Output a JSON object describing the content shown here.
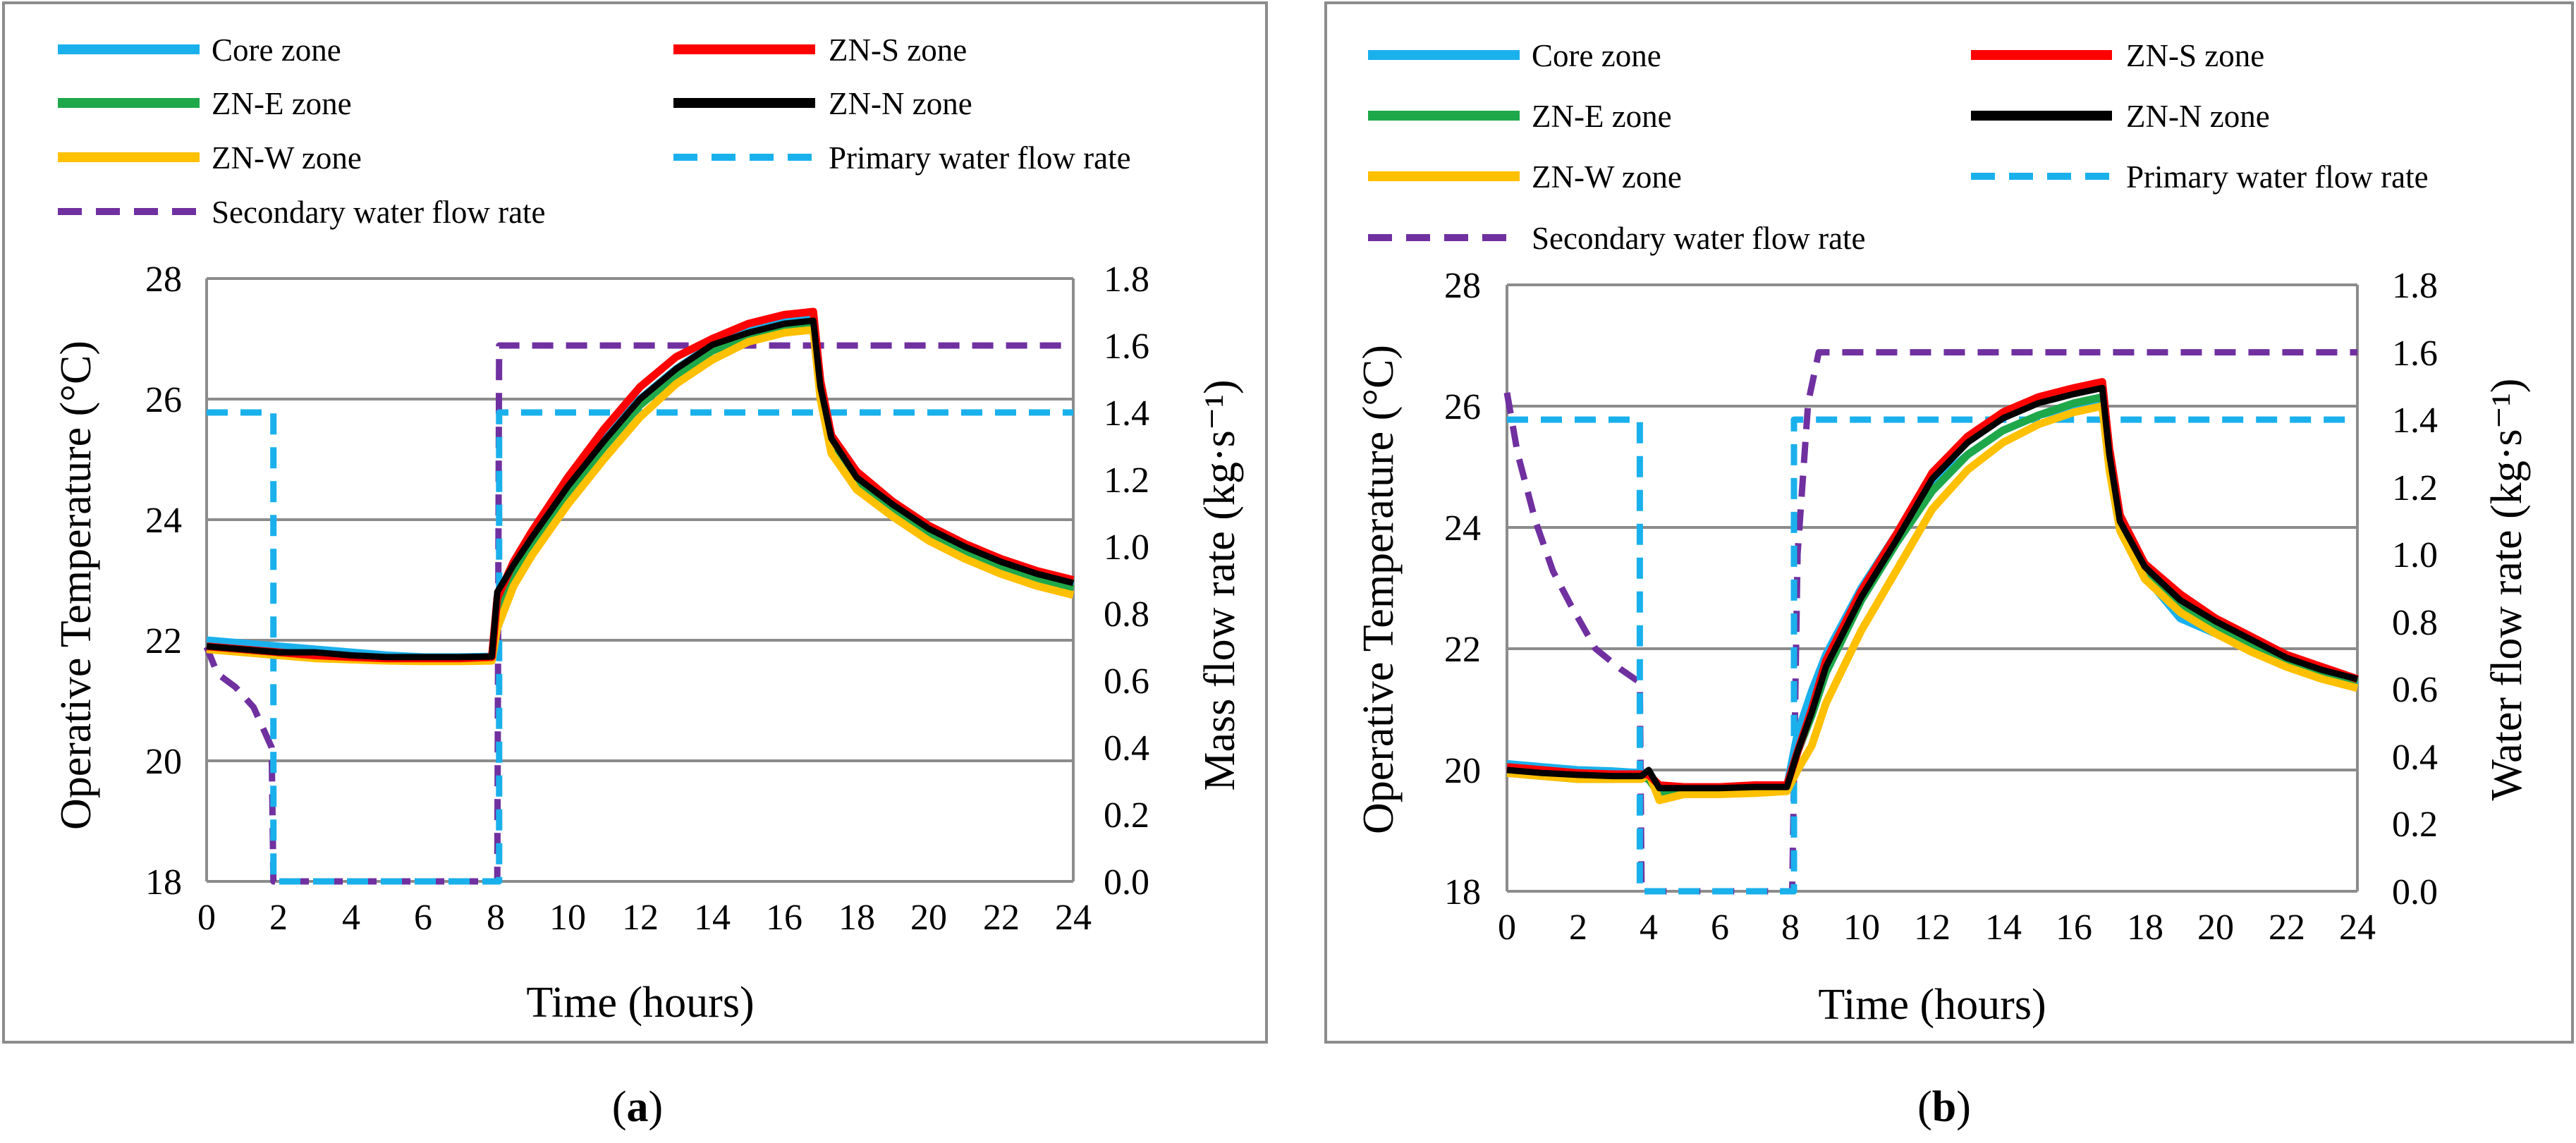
{
  "colors": {
    "core": "#1ab0ec",
    "zns": "#ff0000",
    "zne": "#1fa84a",
    "znn": "#000000",
    "znw": "#ffc000",
    "primary": "#1ab0ec",
    "secondary": "#7030a0"
  },
  "chart_data": [
    {
      "type": "line",
      "caption_open": "(",
      "caption_letter": "a",
      "caption_close": ")",
      "xlabel": "Time (hours)",
      "ylabel": "Operative Temperature (°C)",
      "y2label": "Mass flow rate (kg·s⁻¹)",
      "xlim": [
        0,
        24
      ],
      "ylim": [
        18,
        28
      ],
      "y2lim": [
        0,
        1.8
      ],
      "x_ticks": [
        "0",
        "2",
        "4",
        "6",
        "8",
        "10",
        "12",
        "14",
        "16",
        "18",
        "20",
        "22",
        "24"
      ],
      "y_ticks": [
        "18",
        "20",
        "22",
        "24",
        "26",
        "28"
      ],
      "y2_ticks": [
        "0.0",
        "0.2",
        "0.4",
        "0.6",
        "0.8",
        "1.0",
        "1.2",
        "1.4",
        "1.6",
        "1.8"
      ],
      "legend": [
        {
          "key": "core",
          "label": "Core zone",
          "dash": false
        },
        {
          "key": "zns",
          "label": "ZN-S zone",
          "dash": false
        },
        {
          "key": "zne",
          "label": "ZN-E zone",
          "dash": false
        },
        {
          "key": "znn",
          "label": "ZN-N zone",
          "dash": false
        },
        {
          "key": "znw",
          "label": "ZN-W zone",
          "dash": false
        },
        {
          "key": "primary",
          "label": "Primary water flow rate",
          "dash": true
        },
        {
          "key": "secondary",
          "label": "Secondary water flow rate",
          "dash": true
        }
      ],
      "series": [
        {
          "key": "core",
          "name": "Core zone",
          "axis": "left",
          "x": [
            0,
            1,
            2,
            3,
            4,
            5,
            6,
            7,
            7.9,
            8.05,
            8.5,
            9,
            10,
            11,
            12,
            13,
            14,
            15,
            16,
            16.8,
            17,
            17.3,
            18,
            19,
            20,
            21,
            22,
            23,
            24
          ],
          "y": [
            22.0,
            21.95,
            21.9,
            21.85,
            21.8,
            21.75,
            21.72,
            21.72,
            21.73,
            22.6,
            23.2,
            23.6,
            24.5,
            25.3,
            26.0,
            26.5,
            26.9,
            27.15,
            27.3,
            27.35,
            26.2,
            25.3,
            24.7,
            24.2,
            23.8,
            23.5,
            23.25,
            23.05,
            22.9
          ]
        },
        {
          "key": "zns",
          "name": "ZN-S zone",
          "axis": "left",
          "x": [
            0,
            1,
            2,
            3,
            4,
            5,
            6,
            7,
            7.9,
            8.05,
            8.5,
            9,
            10,
            11,
            12,
            13,
            14,
            15,
            16,
            16.8,
            17,
            17.3,
            18,
            19,
            20,
            21,
            22,
            23,
            24
          ],
          "y": [
            21.9,
            21.85,
            21.8,
            21.75,
            21.72,
            21.7,
            21.7,
            21.7,
            21.72,
            22.7,
            23.3,
            23.8,
            24.7,
            25.5,
            26.2,
            26.7,
            27.0,
            27.25,
            27.4,
            27.45,
            26.3,
            25.4,
            24.8,
            24.3,
            23.9,
            23.6,
            23.35,
            23.15,
            23.0
          ]
        },
        {
          "key": "zne",
          "name": "ZN-E zone",
          "axis": "left",
          "x": [
            0,
            1,
            2,
            3,
            4,
            5,
            6,
            7,
            7.9,
            8.05,
            8.5,
            9,
            10,
            11,
            12,
            13,
            14,
            15,
            16,
            16.8,
            17,
            17.3,
            18,
            19,
            20,
            21,
            22,
            23,
            24
          ],
          "y": [
            21.88,
            21.82,
            21.78,
            21.72,
            21.7,
            21.68,
            21.66,
            21.66,
            21.68,
            22.5,
            23.1,
            23.55,
            24.45,
            25.2,
            25.9,
            26.4,
            26.8,
            27.05,
            27.2,
            27.25,
            26.1,
            25.25,
            24.65,
            24.15,
            23.75,
            23.45,
            23.2,
            23.0,
            22.85
          ]
        },
        {
          "key": "znn",
          "name": "ZN-N zone",
          "axis": "left",
          "x": [
            0,
            1,
            2,
            3,
            4,
            5,
            6,
            7,
            7.9,
            8.05,
            8.5,
            9,
            10,
            11,
            12,
            13,
            14,
            15,
            16,
            16.8,
            17,
            17.3,
            18,
            19,
            20,
            21,
            22,
            23,
            24
          ],
          "y": [
            21.9,
            21.85,
            21.8,
            21.8,
            21.75,
            21.72,
            21.72,
            21.72,
            21.73,
            22.8,
            23.25,
            23.7,
            24.55,
            25.3,
            26.0,
            26.5,
            26.9,
            27.1,
            27.25,
            27.3,
            26.2,
            25.35,
            24.7,
            24.25,
            23.85,
            23.55,
            23.3,
            23.1,
            22.95
          ]
        },
        {
          "key": "znw",
          "name": "ZN-W zone",
          "axis": "left",
          "x": [
            0,
            1,
            2,
            3,
            4,
            5,
            6,
            7,
            7.9,
            8.05,
            8.5,
            9,
            10,
            11,
            12,
            13,
            14,
            15,
            16,
            16.8,
            17,
            17.3,
            18,
            19,
            20,
            21,
            22,
            23,
            24
          ],
          "y": [
            21.85,
            21.8,
            21.75,
            21.7,
            21.68,
            21.66,
            21.65,
            21.65,
            21.66,
            22.2,
            22.9,
            23.4,
            24.25,
            25.0,
            25.7,
            26.25,
            26.65,
            26.95,
            27.1,
            27.15,
            26.0,
            25.1,
            24.5,
            24.05,
            23.65,
            23.35,
            23.1,
            22.9,
            22.75
          ]
        },
        {
          "key": "primary",
          "name": "Primary water flow rate",
          "axis": "right",
          "x": [
            0,
            1.85,
            1.85,
            8.1,
            8.1,
            24
          ],
          "y": [
            1.4,
            1.4,
            0.0,
            0.0,
            1.4,
            1.4
          ]
        },
        {
          "key": "secondary",
          "name": "Secondary water flow rate",
          "axis": "right",
          "x": [
            0,
            0.3,
            0.8,
            1.3,
            1.8,
            1.85,
            8.05,
            8.1,
            24
          ],
          "y": [
            0.7,
            0.62,
            0.58,
            0.52,
            0.4,
            0.0,
            0.0,
            1.6,
            1.6
          ]
        }
      ]
    },
    {
      "type": "line",
      "caption_open": "(",
      "caption_letter": "b",
      "caption_close": ")",
      "xlabel": "Time (hours)",
      "ylabel": "Operative Temperature (°C)",
      "y2label": "Water flow rate (kg·s⁻¹)",
      "xlim": [
        0,
        24
      ],
      "ylim": [
        18,
        28
      ],
      "y2lim": [
        0,
        1.8
      ],
      "x_ticks": [
        "0",
        "2",
        "4",
        "6",
        "8",
        "10",
        "12",
        "14",
        "16",
        "18",
        "20",
        "22",
        "24"
      ],
      "y_ticks": [
        "18",
        "20",
        "22",
        "24",
        "26",
        "28"
      ],
      "y2_ticks": [
        "0.0",
        "0.2",
        "0.4",
        "0.6",
        "0.8",
        "1.0",
        "1.2",
        "1.4",
        "1.6",
        "1.8"
      ],
      "legend": [
        {
          "key": "core",
          "label": "Core zone",
          "dash": false
        },
        {
          "key": "zns",
          "label": "ZN-S zone",
          "dash": false
        },
        {
          "key": "zne",
          "label": "ZN-E zone",
          "dash": false
        },
        {
          "key": "znn",
          "label": "ZN-N zone",
          "dash": false
        },
        {
          "key": "znw",
          "label": "ZN-W zone",
          "dash": false
        },
        {
          "key": "primary",
          "label": "Primary water flow rate",
          "dash": true
        },
        {
          "key": "secondary",
          "label": "Secondary water flow rate",
          "dash": true
        }
      ],
      "series": [
        {
          "key": "core",
          "name": "Core zone",
          "axis": "left",
          "x": [
            0,
            1,
            2,
            3,
            3.8,
            4,
            4.3,
            5,
            6,
            7,
            7.9,
            8.2,
            8.6,
            9,
            10,
            11,
            12,
            13,
            14,
            15,
            16,
            16.8,
            17,
            17.3,
            18,
            19,
            20,
            21,
            22,
            23,
            24
          ],
          "y": [
            20.1,
            20.05,
            20.0,
            19.98,
            19.95,
            19.9,
            19.7,
            19.65,
            19.65,
            19.7,
            19.72,
            20.6,
            21.3,
            21.9,
            23.0,
            23.9,
            24.7,
            25.2,
            25.6,
            25.85,
            26.0,
            26.1,
            25.1,
            24.0,
            23.2,
            22.5,
            22.25,
            22.0,
            21.75,
            21.55,
            21.4
          ]
        },
        {
          "key": "zns",
          "name": "ZN-S zone",
          "axis": "left",
          "x": [
            0,
            1,
            2,
            3,
            3.8,
            4,
            4.3,
            5,
            6,
            7,
            7.9,
            8.2,
            8.6,
            9,
            10,
            11,
            12,
            13,
            14,
            15,
            16,
            16.8,
            17,
            17.3,
            18,
            19,
            20,
            21,
            22,
            23,
            24
          ],
          "y": [
            20.05,
            20.0,
            19.95,
            19.93,
            19.93,
            19.92,
            19.75,
            19.72,
            19.72,
            19.75,
            19.75,
            20.3,
            21.0,
            21.8,
            22.95,
            23.9,
            24.9,
            25.5,
            25.9,
            26.15,
            26.3,
            26.4,
            25.3,
            24.2,
            23.4,
            22.9,
            22.5,
            22.2,
            21.9,
            21.7,
            21.5
          ]
        },
        {
          "key": "zne",
          "name": "ZN-E zone",
          "axis": "left",
          "x": [
            0,
            1,
            2,
            3,
            3.8,
            4,
            4.3,
            5,
            6,
            7,
            7.9,
            8.2,
            8.6,
            9,
            10,
            11,
            12,
            13,
            14,
            15,
            16,
            16.8,
            17,
            17.3,
            18,
            19,
            20,
            21,
            22,
            23,
            24
          ],
          "y": [
            19.95,
            19.9,
            19.85,
            19.85,
            19.88,
            19.85,
            19.6,
            19.62,
            19.65,
            19.68,
            19.7,
            20.3,
            20.9,
            21.6,
            22.8,
            23.75,
            24.6,
            25.2,
            25.6,
            25.85,
            26.05,
            26.15,
            25.1,
            24.05,
            23.25,
            22.7,
            22.35,
            22.05,
            21.8,
            21.6,
            21.45
          ]
        },
        {
          "key": "znn",
          "name": "ZN-N zone",
          "axis": "left",
          "x": [
            0,
            1,
            2,
            3,
            3.8,
            4,
            4.3,
            5,
            6,
            7,
            7.9,
            8.2,
            8.6,
            9,
            10,
            11,
            12,
            13,
            14,
            15,
            16,
            16.8,
            17,
            17.3,
            18,
            19,
            20,
            21,
            22,
            23,
            24
          ],
          "y": [
            20.0,
            19.95,
            19.92,
            19.9,
            19.9,
            20.0,
            19.7,
            19.7,
            19.7,
            19.72,
            19.72,
            20.3,
            20.95,
            21.7,
            22.85,
            23.8,
            24.8,
            25.4,
            25.8,
            26.05,
            26.2,
            26.3,
            25.2,
            24.1,
            23.35,
            22.8,
            22.45,
            22.15,
            21.85,
            21.65,
            21.5
          ]
        },
        {
          "key": "znw",
          "name": "ZN-W zone",
          "axis": "left",
          "x": [
            0,
            1,
            2,
            3,
            3.8,
            4,
            4.3,
            5,
            6,
            7,
            7.9,
            8.2,
            8.6,
            9,
            10,
            11,
            12,
            13,
            14,
            15,
            16,
            16.8,
            17,
            17.3,
            18,
            19,
            20,
            21,
            22,
            23,
            24
          ],
          "y": [
            19.95,
            19.9,
            19.85,
            19.85,
            19.85,
            19.95,
            19.5,
            19.6,
            19.6,
            19.62,
            19.65,
            20.0,
            20.4,
            21.1,
            22.3,
            23.3,
            24.3,
            24.95,
            25.4,
            25.7,
            25.9,
            26.0,
            24.95,
            23.95,
            23.15,
            22.6,
            22.25,
            21.95,
            21.7,
            21.5,
            21.35
          ]
        },
        {
          "key": "primary",
          "name": "Primary water flow rate",
          "axis": "right",
          "x": [
            0,
            3.75,
            3.75,
            8.1,
            8.1,
            24
          ],
          "y": [
            1.4,
            1.4,
            0.0,
            0.0,
            1.4,
            1.4
          ]
        },
        {
          "key": "secondary",
          "name": "Secondary water flow rate",
          "axis": "right",
          "x": [
            0,
            0.3,
            0.8,
            1.3,
            1.8,
            2.5,
            3.2,
            3.75,
            3.8,
            8.05,
            8.2,
            8.5,
            8.8,
            24
          ],
          "y": [
            1.48,
            1.3,
            1.1,
            0.95,
            0.85,
            0.72,
            0.66,
            0.62,
            0.0,
            0.0,
            1.0,
            1.45,
            1.6,
            1.6
          ]
        }
      ]
    }
  ]
}
